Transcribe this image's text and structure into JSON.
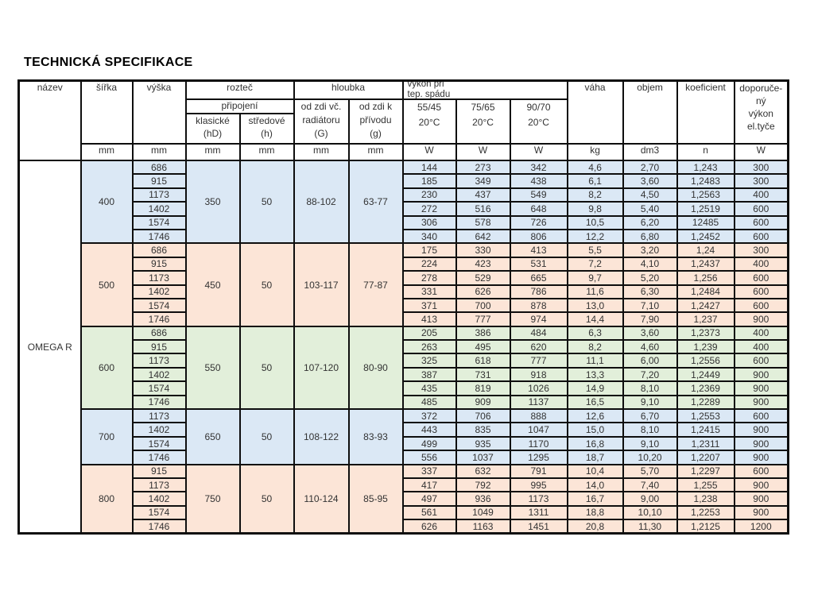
{
  "title": "TECHNICKÁ SPECIFIKACE",
  "product": "OMEGA R",
  "colors": {
    "blue": "#dbe8f5",
    "peach": "#fce5d7",
    "green": "#e2efda"
  },
  "header": {
    "nazev": "název",
    "sirka": "šířka",
    "vyska": "výška",
    "roztec": "rozteč",
    "pripojeni": "připojení",
    "klasicke": "klasické",
    "klasicke_sub": "(hD)",
    "stredove": "středové",
    "stredove_sub": "(h)",
    "hloubka": "hloubka",
    "od_zdi_vc_1": "od zdi vč.",
    "od_zdi_vc_2": "radiátoru",
    "od_zdi_vc_3": "(G)",
    "od_zdi_k_1": "od zdi k",
    "od_zdi_k_2": "přívodu",
    "od_zdi_k_3": "(g)",
    "vykon_line1": "výkon při",
    "vykon_line2": "tep. spádu",
    "t5545": "55/45",
    "t7565": "75/65",
    "t9070": "90/70",
    "deg": "20°C",
    "vaha": "váha",
    "objem": "objem",
    "koeficient": "koeficient",
    "doporuceny": [
      "doporuče-",
      "ný",
      "výkon",
      "el.tyče"
    ],
    "unit_mm": "mm",
    "unit_w": "W",
    "unit_kg": "kg",
    "unit_dm3": "dm3",
    "unit_n": "n"
  },
  "groups": [
    {
      "sirka": "400",
      "klasicke": "350",
      "stredove": "50",
      "G": "88-102",
      "g": "63-77",
      "color": "blue",
      "rows": [
        {
          "vyska": "686",
          "w5545": "144",
          "w7565": "273",
          "w9070": "342",
          "vaha": "4,6",
          "objem": "2,70",
          "koef": "1,243",
          "dop": "300"
        },
        {
          "vyska": "915",
          "w5545": "185",
          "w7565": "349",
          "w9070": "438",
          "vaha": "6,1",
          "objem": "3,60",
          "koef": "1,2483",
          "dop": "300"
        },
        {
          "vyska": "1173",
          "w5545": "230",
          "w7565": "437",
          "w9070": "549",
          "vaha": "8,2",
          "objem": "4,50",
          "koef": "1,2563",
          "dop": "400"
        },
        {
          "vyska": "1402",
          "w5545": "272",
          "w7565": "516",
          "w9070": "648",
          "vaha": "9,8",
          "objem": "5,40",
          "koef": "1,2519",
          "dop": "600"
        },
        {
          "vyska": "1574",
          "w5545": "306",
          "w7565": "578",
          "w9070": "726",
          "vaha": "10,5",
          "objem": "6,20",
          "koef": "12485",
          "dop": "600"
        },
        {
          "vyska": "1746",
          "w5545": "340",
          "w7565": "642",
          "w9070": "806",
          "vaha": "12,2",
          "objem": "6,80",
          "koef": "1,2452",
          "dop": "600"
        }
      ]
    },
    {
      "sirka": "500",
      "klasicke": "450",
      "stredove": "50",
      "G": "103-117",
      "g": "77-87",
      "color": "peach",
      "rows": [
        {
          "vyska": "686",
          "w5545": "175",
          "w7565": "330",
          "w9070": "413",
          "vaha": "5,5",
          "objem": "3,20",
          "koef": "1,24",
          "dop": "300"
        },
        {
          "vyska": "915",
          "w5545": "224",
          "w7565": "423",
          "w9070": "531",
          "vaha": "7,2",
          "objem": "4,10",
          "koef": "1,2437",
          "dop": "400"
        },
        {
          "vyska": "1173",
          "w5545": "278",
          "w7565": "529",
          "w9070": "665",
          "vaha": "9,7",
          "objem": "5,20",
          "koef": "1,256",
          "dop": "600"
        },
        {
          "vyska": "1402",
          "w5545": "331",
          "w7565": "626",
          "w9070": "786",
          "vaha": "11,6",
          "objem": "6,30",
          "koef": "1,2484",
          "dop": "600"
        },
        {
          "vyska": "1574",
          "w5545": "371",
          "w7565": "700",
          "w9070": "878",
          "vaha": "13,0",
          "objem": "7,10",
          "koef": "1,2427",
          "dop": "600"
        },
        {
          "vyska": "1746",
          "w5545": "413",
          "w7565": "777",
          "w9070": "974",
          "vaha": "14,4",
          "objem": "7,90",
          "koef": "1,237",
          "dop": "900"
        }
      ]
    },
    {
      "sirka": "600",
      "klasicke": "550",
      "stredove": "50",
      "G": "107-120",
      "g": "80-90",
      "color": "green",
      "rows": [
        {
          "vyska": "686",
          "w5545": "205",
          "w7565": "386",
          "w9070": "484",
          "vaha": "6,3",
          "objem": "3,60",
          "koef": "1,2373",
          "dop": "400"
        },
        {
          "vyska": "915",
          "w5545": "263",
          "w7565": "495",
          "w9070": "620",
          "vaha": "8,2",
          "objem": "4,60",
          "koef": "1,239",
          "dop": "400"
        },
        {
          "vyska": "1173",
          "w5545": "325",
          "w7565": "618",
          "w9070": "777",
          "vaha": "11,1",
          "objem": "6,00",
          "koef": "1,2556",
          "dop": "600"
        },
        {
          "vyska": "1402",
          "w5545": "387",
          "w7565": "731",
          "w9070": "918",
          "vaha": "13,3",
          "objem": "7,20",
          "koef": "1,2449",
          "dop": "900"
        },
        {
          "vyska": "1574",
          "w5545": "435",
          "w7565": "819",
          "w9070": "1026",
          "vaha": "14,9",
          "objem": "8,10",
          "koef": "1,2369",
          "dop": "900"
        },
        {
          "vyska": "1746",
          "w5545": "485",
          "w7565": "909",
          "w9070": "1137",
          "vaha": "16,5",
          "objem": "9,10",
          "koef": "1,2289",
          "dop": "900"
        }
      ]
    },
    {
      "sirka": "700",
      "klasicke": "650",
      "stredove": "50",
      "G": "108-122",
      "g": "83-93",
      "color": "blue",
      "rows": [
        {
          "vyska": "1173",
          "w5545": "372",
          "w7565": "706",
          "w9070": "888",
          "vaha": "12,6",
          "objem": "6,70",
          "koef": "1,2553",
          "dop": "600"
        },
        {
          "vyska": "1402",
          "w5545": "443",
          "w7565": "835",
          "w9070": "1047",
          "vaha": "15,0",
          "objem": "8,10",
          "koef": "1,2415",
          "dop": "900"
        },
        {
          "vyska": "1574",
          "w5545": "499",
          "w7565": "935",
          "w9070": "1170",
          "vaha": "16,8",
          "objem": "9,10",
          "koef": "1,2311",
          "dop": "900"
        },
        {
          "vyska": "1746",
          "w5545": "556",
          "w7565": "1037",
          "w9070": "1295",
          "vaha": "18,7",
          "objem": "10,20",
          "koef": "1,2207",
          "dop": "900"
        }
      ]
    },
    {
      "sirka": "800",
      "klasicke": "750",
      "stredove": "50",
      "G": "110-124",
      "g": "85-95",
      "color": "peach",
      "rows": [
        {
          "vyska": "915",
          "w5545": "337",
          "w7565": "632",
          "w9070": "791",
          "vaha": "10,4",
          "objem": "5,70",
          "koef": "1,2297",
          "dop": "600"
        },
        {
          "vyska": "1173",
          "w5545": "417",
          "w7565": "792",
          "w9070": "995",
          "vaha": "14,0",
          "objem": "7,40",
          "koef": "1,255",
          "dop": "900"
        },
        {
          "vyska": "1402",
          "w5545": "497",
          "w7565": "936",
          "w9070": "1173",
          "vaha": "16,7",
          "objem": "9,00",
          "koef": "1,238",
          "dop": "900"
        },
        {
          "vyska": "1574",
          "w5545": "561",
          "w7565": "1049",
          "w9070": "1311",
          "vaha": "18,8",
          "objem": "10,10",
          "koef": "1,2253",
          "dop": "900"
        },
        {
          "vyska": "1746",
          "w5545": "626",
          "w7565": "1163",
          "w9070": "1451",
          "vaha": "20,8",
          "objem": "11,30",
          "koef": "1,2125",
          "dop": "1200"
        }
      ]
    }
  ]
}
